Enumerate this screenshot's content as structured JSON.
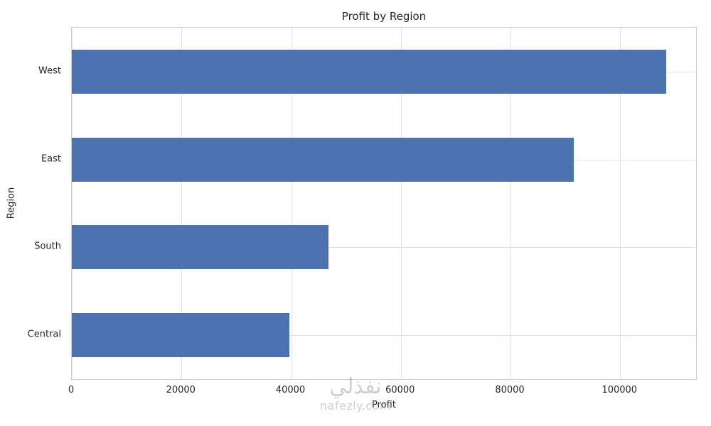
{
  "chart_data": {
    "type": "bar",
    "orientation": "horizontal",
    "title": "Profit by Region",
    "xlabel": "Profit",
    "ylabel": "Region",
    "categories": [
      "West",
      "East",
      "South",
      "Central"
    ],
    "values": [
      108418,
      91523,
      46749,
      39706
    ],
    "xlim": [
      0,
      113840
    ],
    "xticks": [
      0,
      20000,
      40000,
      60000,
      80000,
      100000
    ],
    "bar_color": "#4c72b0",
    "grid": true,
    "legend": "none"
  },
  "watermark": {
    "arabic": "نفذلي",
    "site": "nafezly.com"
  }
}
